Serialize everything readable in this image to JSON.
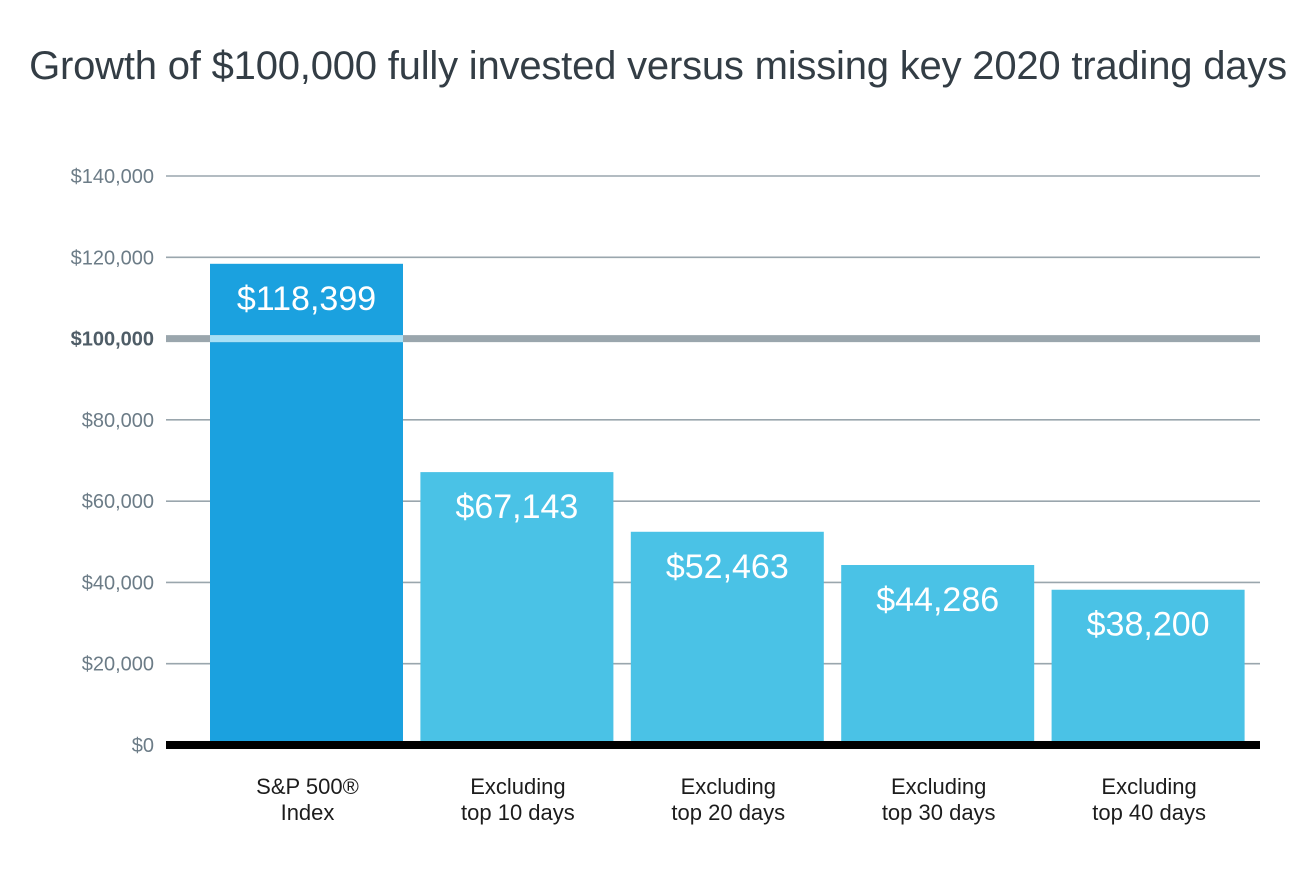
{
  "colors": {
    "primary_bar": "#1ba1df",
    "secondary_bar": "#4ac2e6",
    "ref_line_over_bar": "#a8e0f6"
  },
  "chart_data": {
    "type": "bar",
    "title": "Growth of $100,000 fully invested versus missing key 2020 trading days",
    "xlabel": "",
    "ylabel": "",
    "ylim": [
      0,
      140000
    ],
    "yticks": [
      0,
      20000,
      40000,
      60000,
      80000,
      100000,
      120000,
      140000
    ],
    "ytick_labels": [
      "$0",
      "$20,000",
      "$40,000",
      "$60,000",
      "$80,000",
      "$100,000",
      "$120,000",
      "$140,000"
    ],
    "reference_line": {
      "value": 100000,
      "label": "$100,000"
    },
    "grid": true,
    "categories": [
      [
        "S&P 500®",
        "Index"
      ],
      [
        "Excluding",
        "top 10 days"
      ],
      [
        "Excluding",
        "top 20 days"
      ],
      [
        "Excluding",
        "top 30 days"
      ],
      [
        "Excluding",
        "top 40 days"
      ]
    ],
    "values": [
      118399,
      67143,
      52463,
      44286,
      38200
    ],
    "value_labels": [
      "$118,399",
      "$67,143",
      "$52,463",
      "$44,286",
      "$38,200"
    ]
  }
}
